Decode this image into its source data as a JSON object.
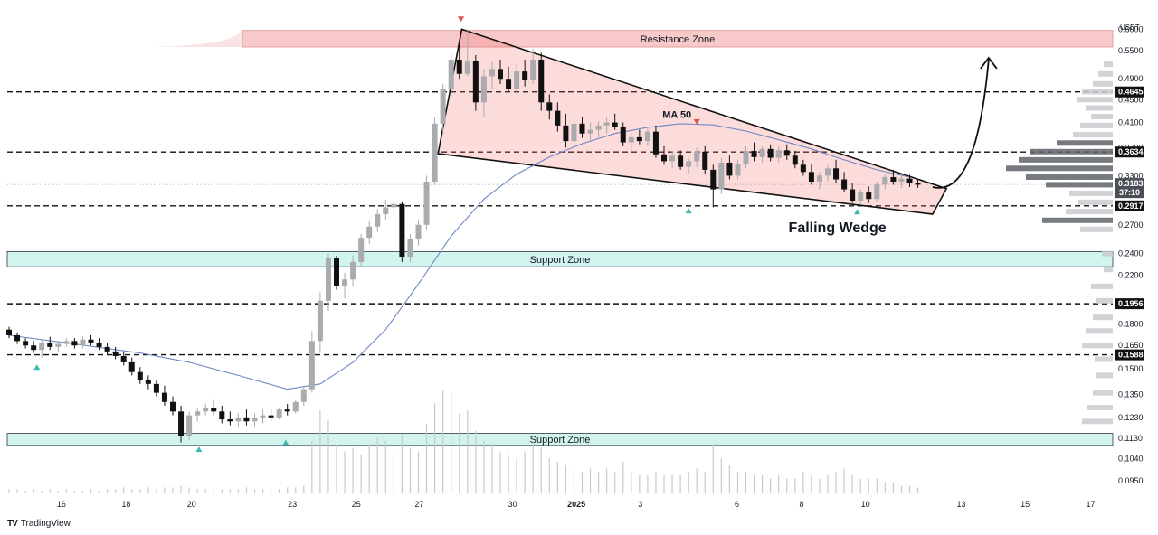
{
  "chart_data": {
    "type": "candlestick",
    "currency": "USDT",
    "ylim": [
      0.09,
      0.63
    ],
    "scale": "log",
    "price_ticks": [
      "0.6000",
      "0.5500",
      "0.4900",
      "0.4500",
      "0.4100",
      "0.3700",
      "0.3300",
      "0.2700",
      "0.2400",
      "0.2200",
      "0.1800",
      "0.1650",
      "0.1500",
      "0.1350",
      "0.1230",
      "0.1130",
      "0.1040",
      "0.0950"
    ],
    "date_ticks": [
      "16",
      "18",
      "20",
      "23",
      "25",
      "27",
      "30",
      "2025",
      "3",
      "6",
      "8",
      "10",
      "13",
      "15",
      "17"
    ],
    "horizontal_levels": [
      {
        "label": "0.4645",
        "value": 0.4645
      },
      {
        "label": "0.3634",
        "value": 0.3634
      },
      {
        "label": "0.2917",
        "value": 0.2917
      },
      {
        "label": "0.1956",
        "value": 0.1956
      },
      {
        "label": "0.1588",
        "value": 0.1588
      }
    ],
    "last_price": {
      "label": "0.3183",
      "countdown": "37:10",
      "value": 0.3183
    },
    "zones": [
      {
        "name": "Resistance Zone",
        "low": 0.558,
        "high": 0.597,
        "kind": "resistance"
      },
      {
        "name": "Support Zone",
        "low": 0.2275,
        "high": 0.242,
        "kind": "support"
      },
      {
        "name": "Support Zone",
        "low": 0.1097,
        "high": 0.1152,
        "kind": "support"
      }
    ],
    "annotations": {
      "ma_label": "MA 50",
      "pattern_label": "Falling Wedge"
    },
    "candles": [
      [
        0,
        0.176,
        0.178,
        0.17,
        0.172
      ],
      [
        1,
        0.172,
        0.174,
        0.166,
        0.168
      ],
      [
        2,
        0.168,
        0.17,
        0.163,
        0.165
      ],
      [
        3,
        0.165,
        0.168,
        0.16,
        0.162
      ],
      [
        4,
        0.162,
        0.169,
        0.157,
        0.167
      ],
      [
        5,
        0.167,
        0.171,
        0.162,
        0.164
      ],
      [
        6,
        0.164,
        0.168,
        0.16,
        0.166
      ],
      [
        7,
        0.166,
        0.17,
        0.164,
        0.168
      ],
      [
        8,
        0.168,
        0.17,
        0.163,
        0.165
      ],
      [
        9,
        0.165,
        0.171,
        0.163,
        0.169
      ],
      [
        10,
        0.169,
        0.172,
        0.165,
        0.167
      ],
      [
        11,
        0.167,
        0.17,
        0.162,
        0.164
      ],
      [
        12,
        0.164,
        0.167,
        0.159,
        0.161
      ],
      [
        13,
        0.161,
        0.164,
        0.156,
        0.158
      ],
      [
        14,
        0.158,
        0.161,
        0.152,
        0.154
      ],
      [
        15,
        0.154,
        0.157,
        0.146,
        0.148
      ],
      [
        16,
        0.148,
        0.151,
        0.141,
        0.143
      ],
      [
        17,
        0.143,
        0.146,
        0.138,
        0.141
      ],
      [
        18,
        0.141,
        0.143,
        0.134,
        0.136
      ],
      [
        19,
        0.136,
        0.14,
        0.129,
        0.131
      ],
      [
        20,
        0.131,
        0.134,
        0.124,
        0.126
      ],
      [
        21,
        0.126,
        0.129,
        0.111,
        0.114
      ],
      [
        22,
        0.114,
        0.126,
        0.112,
        0.124
      ],
      [
        23,
        0.124,
        0.128,
        0.121,
        0.126
      ],
      [
        24,
        0.126,
        0.13,
        0.124,
        0.128
      ],
      [
        25,
        0.128,
        0.132,
        0.124,
        0.126
      ],
      [
        26,
        0.126,
        0.129,
        0.12,
        0.122
      ],
      [
        27,
        0.122,
        0.126,
        0.119,
        0.121
      ],
      [
        28,
        0.121,
        0.125,
        0.118,
        0.123
      ],
      [
        29,
        0.123,
        0.127,
        0.119,
        0.121
      ],
      [
        30,
        0.121,
        0.125,
        0.118,
        0.123
      ],
      [
        31,
        0.123,
        0.127,
        0.12,
        0.124
      ],
      [
        32,
        0.124,
        0.127,
        0.121,
        0.123
      ],
      [
        33,
        0.123,
        0.128,
        0.122,
        0.127
      ],
      [
        34,
        0.127,
        0.13,
        0.124,
        0.126
      ],
      [
        35,
        0.126,
        0.132,
        0.125,
        0.131
      ],
      [
        36,
        0.131,
        0.14,
        0.129,
        0.138
      ],
      [
        37,
        0.138,
        0.175,
        0.136,
        0.168
      ],
      [
        38,
        0.168,
        0.205,
        0.16,
        0.198
      ],
      [
        39,
        0.198,
        0.24,
        0.19,
        0.236
      ],
      [
        40,
        0.236,
        0.238,
        0.207,
        0.21
      ],
      [
        41,
        0.21,
        0.222,
        0.2,
        0.216
      ],
      [
        42,
        0.216,
        0.238,
        0.21,
        0.232
      ],
      [
        43,
        0.232,
        0.26,
        0.228,
        0.256
      ],
      [
        44,
        0.256,
        0.275,
        0.25,
        0.268
      ],
      [
        45,
        0.268,
        0.288,
        0.262,
        0.282
      ],
      [
        46,
        0.282,
        0.299,
        0.276,
        0.29
      ],
      [
        47,
        0.29,
        0.298,
        0.282,
        0.294
      ],
      [
        48,
        0.294,
        0.297,
        0.232,
        0.237
      ],
      [
        49,
        0.237,
        0.26,
        0.232,
        0.255
      ],
      [
        50,
        0.255,
        0.276,
        0.248,
        0.27
      ],
      [
        51,
        0.27,
        0.33,
        0.265,
        0.322
      ],
      [
        52,
        0.322,
        0.42,
        0.318,
        0.408
      ],
      [
        53,
        0.408,
        0.48,
        0.395,
        0.47
      ],
      [
        54,
        0.47,
        0.55,
        0.455,
        0.53
      ],
      [
        55,
        0.53,
        0.565,
        0.49,
        0.5
      ],
      [
        56,
        0.5,
        0.6,
        0.495,
        0.528
      ],
      [
        57,
        0.528,
        0.54,
        0.43,
        0.445
      ],
      [
        58,
        0.445,
        0.51,
        0.42,
        0.495
      ],
      [
        59,
        0.495,
        0.525,
        0.47,
        0.51
      ],
      [
        60,
        0.51,
        0.53,
        0.48,
        0.49
      ],
      [
        61,
        0.49,
        0.515,
        0.465,
        0.47
      ],
      [
        62,
        0.47,
        0.52,
        0.46,
        0.505
      ],
      [
        63,
        0.505,
        0.53,
        0.475,
        0.488
      ],
      [
        64,
        0.488,
        0.555,
        0.48,
        0.53
      ],
      [
        65,
        0.53,
        0.545,
        0.43,
        0.445
      ],
      [
        66,
        0.445,
        0.46,
        0.415,
        0.43
      ],
      [
        67,
        0.43,
        0.445,
        0.395,
        0.405
      ],
      [
        68,
        0.405,
        0.425,
        0.37,
        0.38
      ],
      [
        69,
        0.38,
        0.415,
        0.372,
        0.408
      ],
      [
        70,
        0.408,
        0.42,
        0.385,
        0.392
      ],
      [
        71,
        0.392,
        0.41,
        0.38,
        0.398
      ],
      [
        72,
        0.398,
        0.412,
        0.386,
        0.405
      ],
      [
        73,
        0.405,
        0.42,
        0.392,
        0.41
      ],
      [
        74,
        0.41,
        0.425,
        0.398,
        0.402
      ],
      [
        75,
        0.402,
        0.41,
        0.372,
        0.378
      ],
      [
        76,
        0.378,
        0.392,
        0.365,
        0.386
      ],
      [
        77,
        0.386,
        0.398,
        0.375,
        0.38
      ],
      [
        78,
        0.38,
        0.4,
        0.372,
        0.395
      ],
      [
        79,
        0.395,
        0.405,
        0.355,
        0.36
      ],
      [
        80,
        0.36,
        0.372,
        0.345,
        0.35
      ],
      [
        81,
        0.35,
        0.365,
        0.34,
        0.358
      ],
      [
        82,
        0.358,
        0.366,
        0.338,
        0.342
      ],
      [
        83,
        0.342,
        0.355,
        0.332,
        0.35
      ],
      [
        84,
        0.35,
        0.37,
        0.342,
        0.364
      ],
      [
        85,
        0.364,
        0.372,
        0.332,
        0.338
      ],
      [
        86,
        0.338,
        0.345,
        0.29,
        0.312
      ],
      [
        87,
        0.312,
        0.355,
        0.306,
        0.348
      ],
      [
        88,
        0.348,
        0.358,
        0.325,
        0.33
      ],
      [
        89,
        0.33,
        0.352,
        0.325,
        0.346
      ],
      [
        90,
        0.346,
        0.372,
        0.34,
        0.365
      ],
      [
        91,
        0.365,
        0.378,
        0.35,
        0.356
      ],
      [
        92,
        0.356,
        0.372,
        0.348,
        0.368
      ],
      [
        93,
        0.368,
        0.375,
        0.35,
        0.355
      ],
      [
        94,
        0.355,
        0.372,
        0.348,
        0.366
      ],
      [
        95,
        0.366,
        0.375,
        0.352,
        0.358
      ],
      [
        96,
        0.358,
        0.365,
        0.34,
        0.345
      ],
      [
        97,
        0.345,
        0.352,
        0.33,
        0.335
      ],
      [
        98,
        0.335,
        0.345,
        0.318,
        0.322
      ],
      [
        99,
        0.322,
        0.335,
        0.312,
        0.33
      ],
      [
        100,
        0.33,
        0.345,
        0.322,
        0.34
      ],
      [
        101,
        0.34,
        0.352,
        0.32,
        0.325
      ],
      [
        102,
        0.325,
        0.335,
        0.308,
        0.312
      ],
      [
        103,
        0.312,
        0.32,
        0.295,
        0.298
      ],
      [
        104,
        0.298,
        0.312,
        0.294,
        0.308
      ],
      [
        105,
        0.308,
        0.316,
        0.295,
        0.3
      ],
      [
        106,
        0.3,
        0.322,
        0.297,
        0.318
      ],
      [
        107,
        0.318,
        0.332,
        0.312,
        0.328
      ],
      [
        108,
        0.328,
        0.338,
        0.318,
        0.322
      ],
      [
        109,
        0.322,
        0.33,
        0.314,
        0.326
      ],
      [
        110,
        0.326,
        0.331,
        0.315,
        0.32
      ],
      [
        111,
        0.32,
        0.326,
        0.314,
        0.318
      ]
    ],
    "ma50": [
      [
        0,
        0.172
      ],
      [
        8,
        0.166
      ],
      [
        16,
        0.16
      ],
      [
        22,
        0.154
      ],
      [
        28,
        0.146
      ],
      [
        34,
        0.138
      ],
      [
        38,
        0.141
      ],
      [
        42,
        0.154
      ],
      [
        46,
        0.176
      ],
      [
        50,
        0.212
      ],
      [
        54,
        0.258
      ],
      [
        58,
        0.3
      ],
      [
        62,
        0.332
      ],
      [
        66,
        0.356
      ],
      [
        70,
        0.376
      ],
      [
        74,
        0.392
      ],
      [
        78,
        0.402
      ],
      [
        82,
        0.408
      ],
      [
        86,
        0.406
      ],
      [
        90,
        0.396
      ],
      [
        94,
        0.382
      ],
      [
        98,
        0.368
      ],
      [
        102,
        0.352
      ],
      [
        106,
        0.338
      ],
      [
        110,
        0.328
      ]
    ],
    "volume": [
      2,
      2,
      1,
      2,
      1,
      2,
      1,
      2,
      1,
      1,
      2,
      1,
      2,
      2,
      3,
      2,
      2,
      3,
      2,
      3,
      3,
      4,
      3,
      2,
      2,
      2,
      2,
      2,
      2,
      3,
      2,
      2,
      3,
      2,
      3,
      3,
      4,
      30,
      48,
      42,
      28,
      24,
      26,
      22,
      28,
      32,
      30,
      22,
      34,
      26,
      24,
      40,
      52,
      60,
      58,
      46,
      48,
      36,
      30,
      28,
      24,
      22,
      20,
      24,
      30,
      26,
      20,
      18,
      16,
      14,
      12,
      14,
      12,
      14,
      12,
      18,
      12,
      10,
      10,
      12,
      10,
      10,
      10,
      12,
      14,
      12,
      28,
      20,
      16,
      12,
      12,
      10,
      10,
      8,
      10,
      8,
      8,
      12,
      10,
      8,
      10,
      12,
      14,
      10,
      8,
      8,
      8,
      6,
      6,
      4,
      4,
      3
    ],
    "volume_profile": [
      {
        "price": 0.52,
        "length": 10
      },
      {
        "price": 0.5,
        "length": 16
      },
      {
        "price": 0.48,
        "length": 22
      },
      {
        "price": 0.465,
        "length": 34
      },
      {
        "price": 0.45,
        "length": 40
      },
      {
        "price": 0.435,
        "length": 30
      },
      {
        "price": 0.42,
        "length": 24
      },
      {
        "price": 0.405,
        "length": 36
      },
      {
        "price": 0.39,
        "length": 44
      },
      {
        "price": 0.377,
        "length": 62
      },
      {
        "price": 0.364,
        "length": 92
      },
      {
        "price": 0.352,
        "length": 104
      },
      {
        "price": 0.34,
        "length": 118
      },
      {
        "price": 0.328,
        "length": 96
      },
      {
        "price": 0.318,
        "length": 74
      },
      {
        "price": 0.307,
        "length": 48
      },
      {
        "price": 0.296,
        "length": 38
      },
      {
        "price": 0.285,
        "length": 52
      },
      {
        "price": 0.275,
        "length": 78
      },
      {
        "price": 0.265,
        "length": 36
      },
      {
        "price": 0.24,
        "length": 12
      },
      {
        "price": 0.225,
        "length": 10
      },
      {
        "price": 0.21,
        "length": 24
      },
      {
        "price": 0.198,
        "length": 18
      },
      {
        "price": 0.185,
        "length": 22
      },
      {
        "price": 0.175,
        "length": 30
      },
      {
        "price": 0.165,
        "length": 34
      },
      {
        "price": 0.156,
        "length": 20
      },
      {
        "price": 0.146,
        "length": 18
      },
      {
        "price": 0.136,
        "length": 22
      },
      {
        "price": 0.128,
        "length": 28
      },
      {
        "price": 0.121,
        "length": 34
      }
    ]
  },
  "branding": {
    "logo_text": "TradingView"
  }
}
